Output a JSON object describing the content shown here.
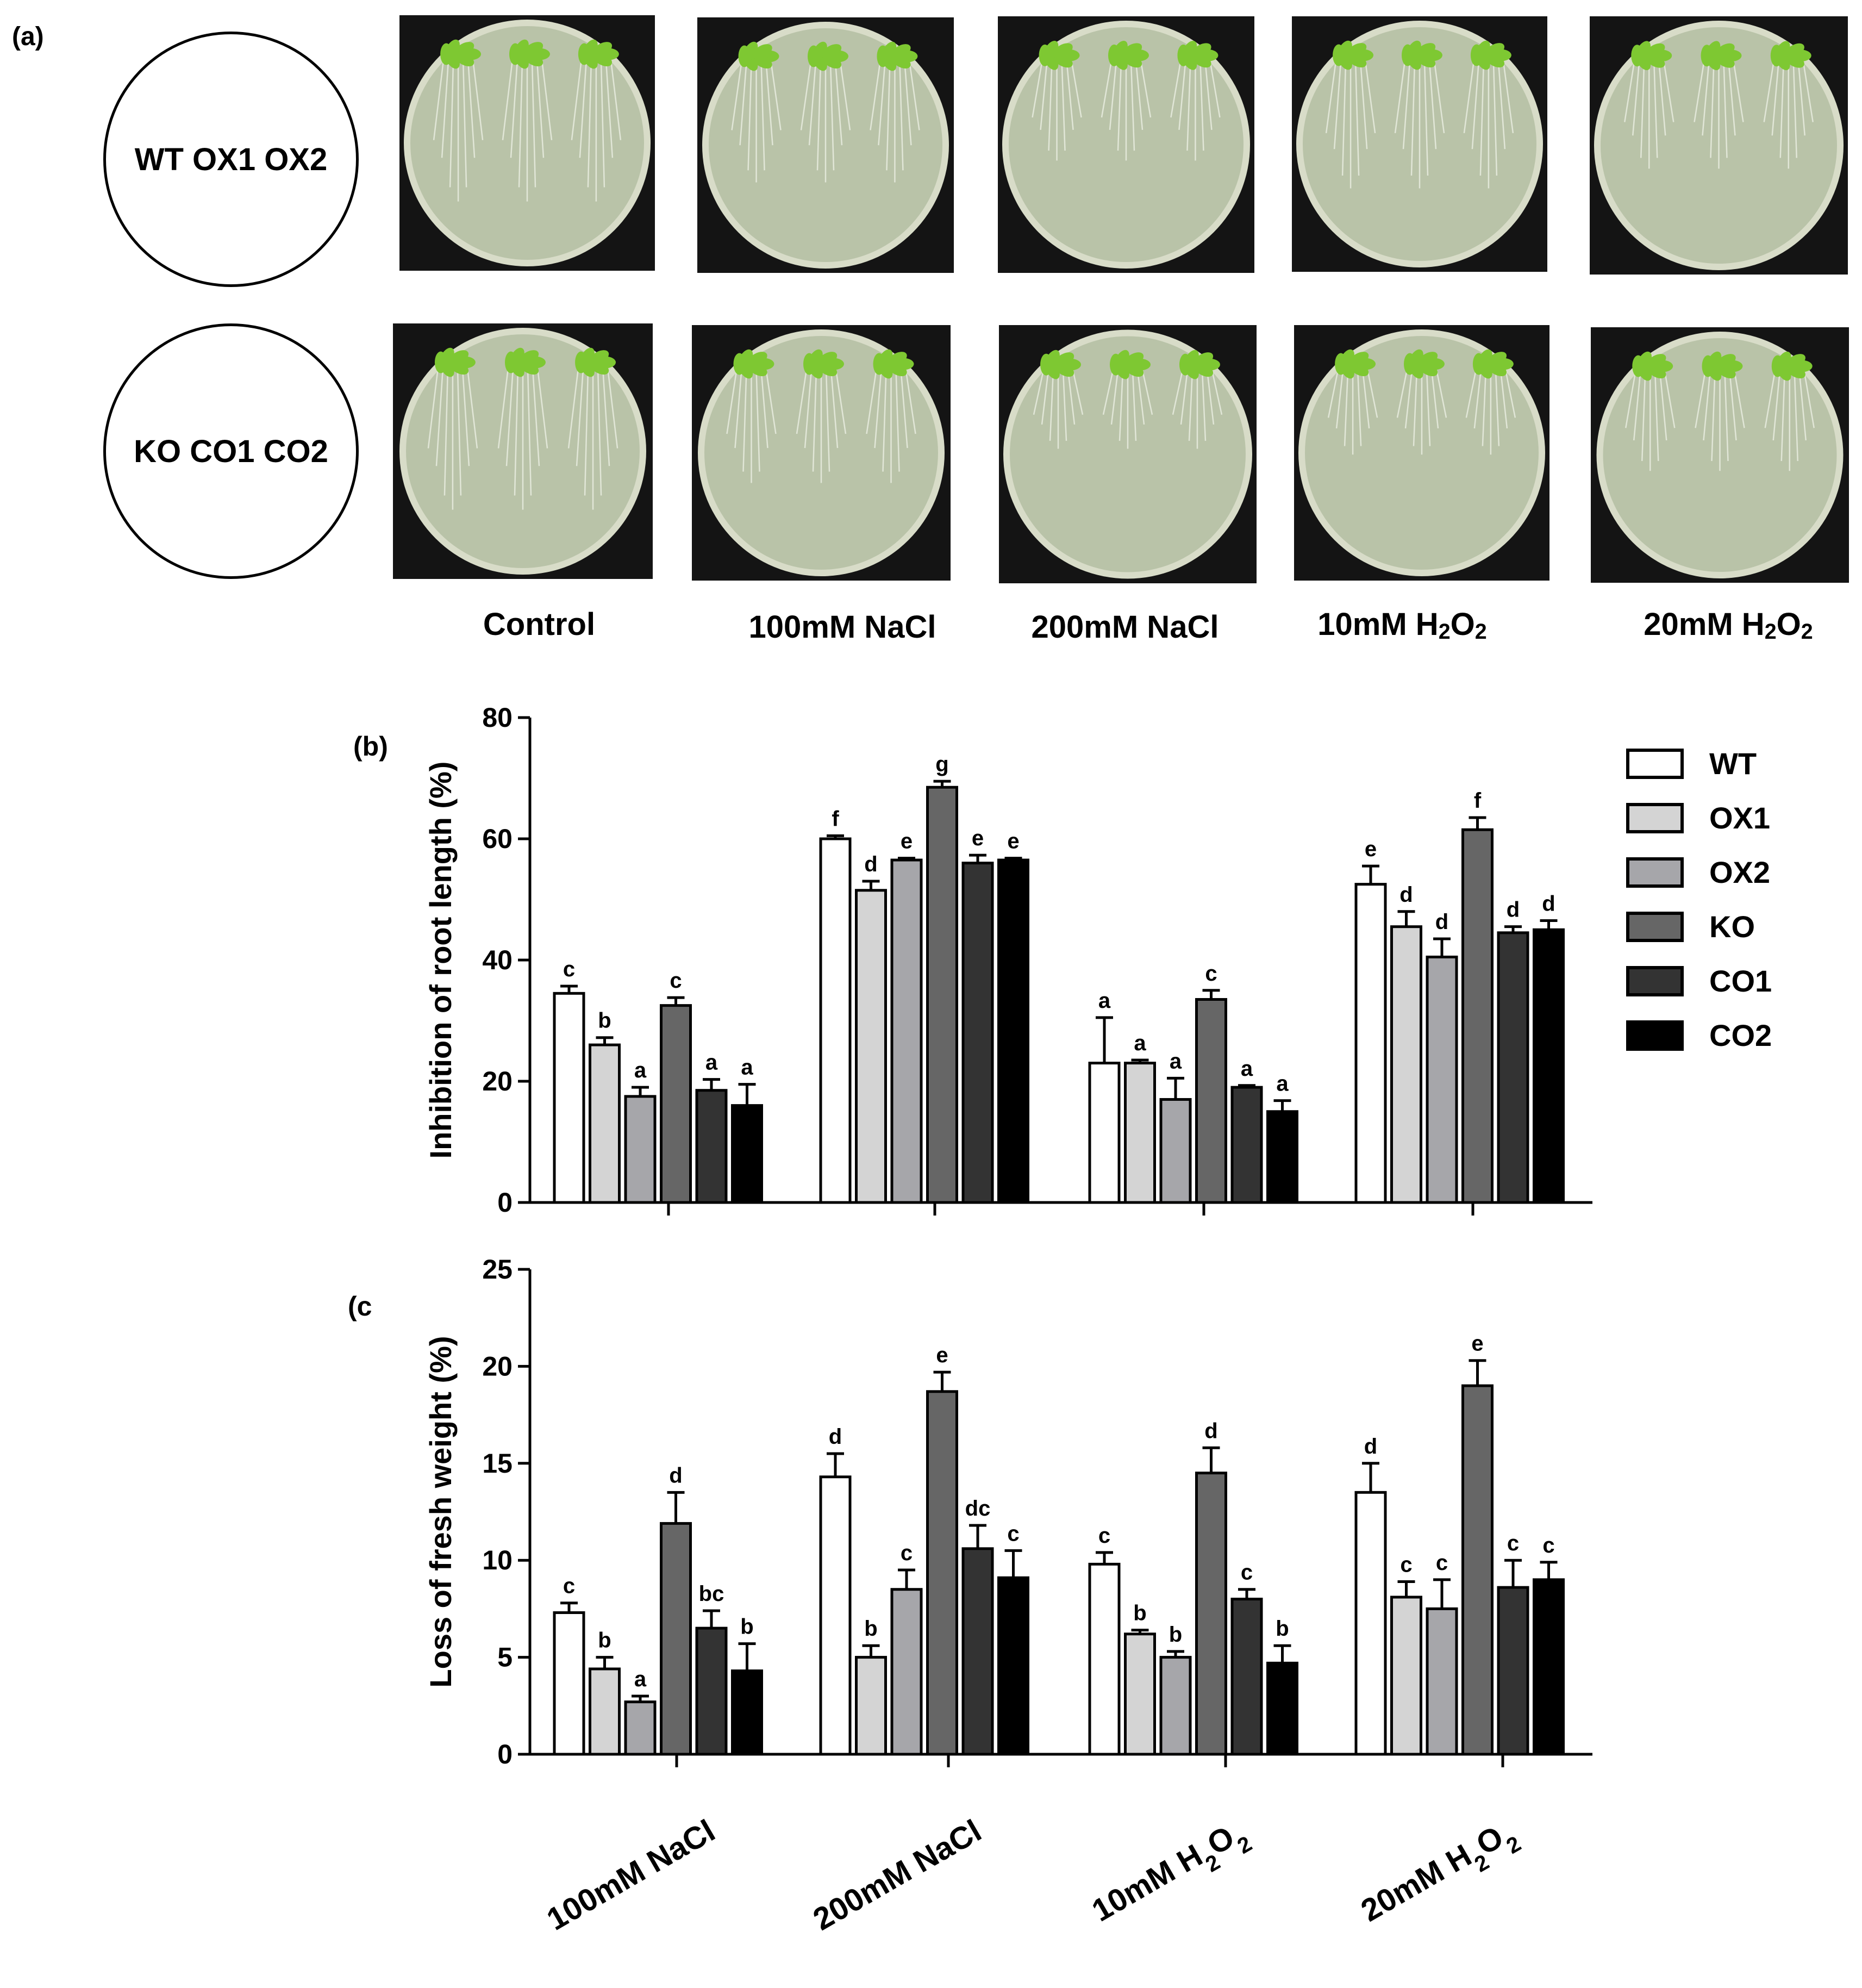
{
  "panel_a": {
    "label": "(a)",
    "genotype_rows": [
      "WT OX1 OX2",
      "KO CO1 CO2"
    ],
    "conditions": [
      "Control",
      "100mM NaCl",
      "200mM NaCl",
      "10mM H2O2",
      "20mM H2O2"
    ],
    "colors": {
      "agar": "#b9c3a8",
      "rim": "#d8dcc8",
      "background": "#141414",
      "leaf": "#7ec832",
      "root": "#e8ecdf"
    }
  },
  "chart_data": [
    {
      "panel_label": "(b)",
      "type": "bar",
      "title": "",
      "ylabel": "Inhibition of root length (%)",
      "xlabel": "",
      "ylim": [
        0,
        80
      ],
      "yticks": [
        0,
        20,
        40,
        60,
        80
      ],
      "categories": [
        "100mM NaCl",
        "200mM NaCl",
        "10mM H2O2",
        "20mM H2O2"
      ],
      "series": [
        {
          "name": "WT",
          "color": "#ffffff",
          "values": [
            34.5,
            60.0,
            23.0,
            52.5
          ],
          "errors": [
            1.2,
            0.5,
            7.5,
            3.0
          ],
          "letters": [
            "c",
            "f",
            "a",
            "e"
          ]
        },
        {
          "name": "OX1",
          "color": "#d4d4d4",
          "values": [
            26.0,
            51.5,
            23.0,
            45.5
          ],
          "errors": [
            1.2,
            1.5,
            0.5,
            2.5
          ],
          "letters": [
            "b",
            "d",
            "a",
            "d"
          ]
        },
        {
          "name": "OX2",
          "color": "#a6a6aa",
          "values": [
            17.5,
            56.5,
            17.0,
            40.5
          ],
          "errors": [
            1.5,
            0.3,
            3.5,
            3.0
          ],
          "letters": [
            "a",
            "e",
            "a",
            "d"
          ]
        },
        {
          "name": "KO",
          "color": "#666666",
          "values": [
            32.5,
            68.5,
            33.5,
            61.5
          ],
          "errors": [
            1.3,
            1.0,
            1.5,
            2.0
          ],
          "letters": [
            "c",
            "g",
            "c",
            "f"
          ]
        },
        {
          "name": "CO1",
          "color": "#333333",
          "values": [
            18.5,
            56.0,
            19.0,
            44.5
          ],
          "errors": [
            1.8,
            1.3,
            0.3,
            1.0
          ],
          "letters": [
            "a",
            "e",
            "a",
            "d"
          ]
        },
        {
          "name": "CO2",
          "color": "#000000",
          "values": [
            16.0,
            56.5,
            15.0,
            45.0
          ],
          "errors": [
            3.5,
            0.3,
            1.8,
            1.5
          ],
          "letters": [
            "a",
            "e",
            "a",
            "d"
          ]
        }
      ]
    },
    {
      "panel_label": "(c",
      "type": "bar",
      "title": "",
      "ylabel": "Loss of fresh weight (%)",
      "xlabel": "",
      "ylim": [
        0,
        25
      ],
      "yticks": [
        0,
        5,
        10,
        15,
        20,
        25
      ],
      "categories": [
        "100mM NaCl",
        "200mM NaCl",
        "10mM H2O2",
        "20mM H2O2"
      ],
      "series": [
        {
          "name": "WT",
          "color": "#ffffff",
          "values": [
            7.3,
            14.3,
            9.8,
            13.5
          ],
          "errors": [
            0.5,
            1.2,
            0.6,
            1.5
          ],
          "letters": [
            "c",
            "d",
            "c",
            "d"
          ]
        },
        {
          "name": "OX1",
          "color": "#d4d4d4",
          "values": [
            4.4,
            5.0,
            6.2,
            8.1
          ],
          "errors": [
            0.6,
            0.6,
            0.2,
            0.8
          ],
          "letters": [
            "b",
            "b",
            "b",
            "c"
          ]
        },
        {
          "name": "OX2",
          "color": "#a6a6aa",
          "values": [
            2.7,
            8.5,
            5.0,
            7.5
          ],
          "errors": [
            0.3,
            1.0,
            0.3,
            1.5
          ],
          "letters": [
            "a",
            "c",
            "b",
            "c"
          ]
        },
        {
          "name": "KO",
          "color": "#666666",
          "values": [
            11.9,
            18.7,
            14.5,
            19.0
          ],
          "errors": [
            1.6,
            1.0,
            1.3,
            1.3
          ],
          "letters": [
            "d",
            "e",
            "d",
            "e"
          ]
        },
        {
          "name": "CO1",
          "color": "#333333",
          "values": [
            6.5,
            10.6,
            8.0,
            8.6
          ],
          "errors": [
            0.9,
            1.2,
            0.5,
            1.4
          ],
          "letters": [
            "bc",
            "dc",
            "c",
            "c"
          ]
        },
        {
          "name": "CO2",
          "color": "#000000",
          "values": [
            4.3,
            9.1,
            4.7,
            9.0
          ],
          "errors": [
            1.4,
            1.4,
            0.9,
            0.9
          ],
          "letters": [
            "b",
            "c",
            "b",
            "c"
          ]
        }
      ]
    }
  ]
}
